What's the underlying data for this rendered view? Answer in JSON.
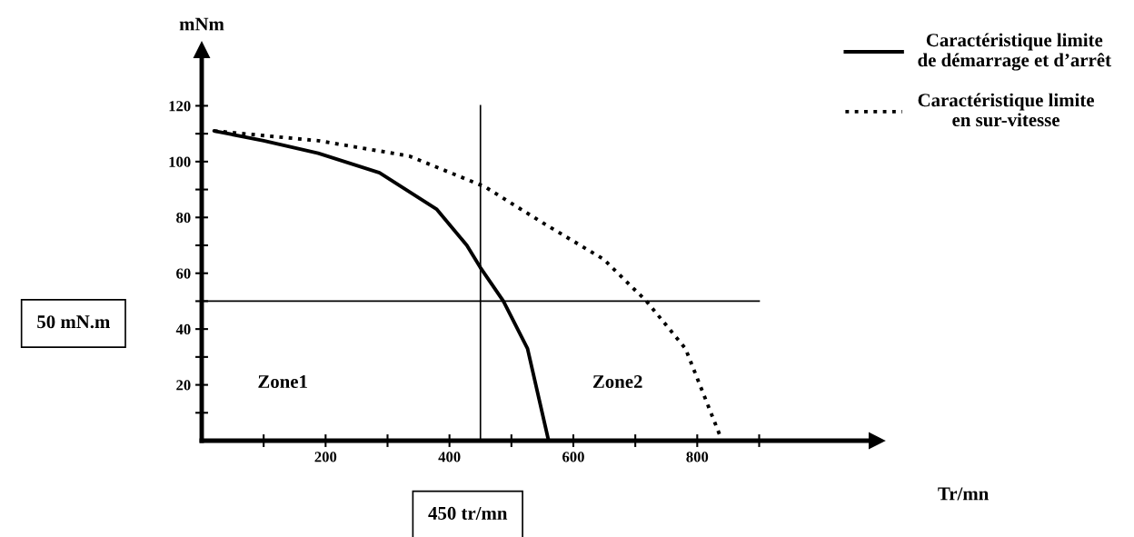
{
  "chart_data": {
    "type": "line",
    "xlabel": "Tr/mn",
    "ylabel": "mNm",
    "xlim": [
      0,
      1090
    ],
    "ylim": [
      0,
      140
    ],
    "xticks": [
      {
        "value": 100,
        "label": null
      },
      200,
      {
        "value": 300,
        "label": null
      },
      400,
      {
        "value": 500,
        "label": null
      },
      600,
      {
        "value": 700,
        "label": null
      },
      800,
      {
        "value": 900,
        "label": null
      }
    ],
    "yticks": [
      {
        "value": 10,
        "label": null
      },
      20,
      {
        "value": 30,
        "label": null
      },
      40,
      {
        "value": 50,
        "label": null
      },
      60,
      {
        "value": 70,
        "label": null
      },
      80,
      {
        "value": 90,
        "label": null
      },
      100,
      {
        "value": 110,
        "label": null
      },
      120
    ],
    "grid": false,
    "legend": "top right",
    "marker": "none",
    "series": [
      {
        "name": "Caractéristique limite\nde démarrage et d’arrêt",
        "color": "#000000",
        "line_style": "solid",
        "x": [
          20,
          100,
          188,
          287,
          379,
          428,
          450,
          487,
          526,
          560
        ],
        "values": [
          111,
          107.5,
          103,
          96,
          83,
          70,
          62,
          50,
          33,
          0
        ]
      },
      {
        "name": "Caractéristique limite\nen sur-vitesse",
        "color": "#000000",
        "line_style": "dotted",
        "x": [
          20,
          188,
          335,
          457,
          551,
          649,
          718,
          781,
          840
        ],
        "values": [
          111,
          107.5,
          102,
          91,
          78,
          65,
          50,
          33,
          0
        ]
      }
    ],
    "ref_lines": [
      {
        "axis": "y",
        "value": 50,
        "color": "#000000"
      },
      {
        "axis": "x",
        "value": 450,
        "color": "#000000"
      }
    ],
    "annotations": [
      "Zone1",
      "Zone2",
      "50 mN.m",
      "450 tr/mn"
    ]
  }
}
